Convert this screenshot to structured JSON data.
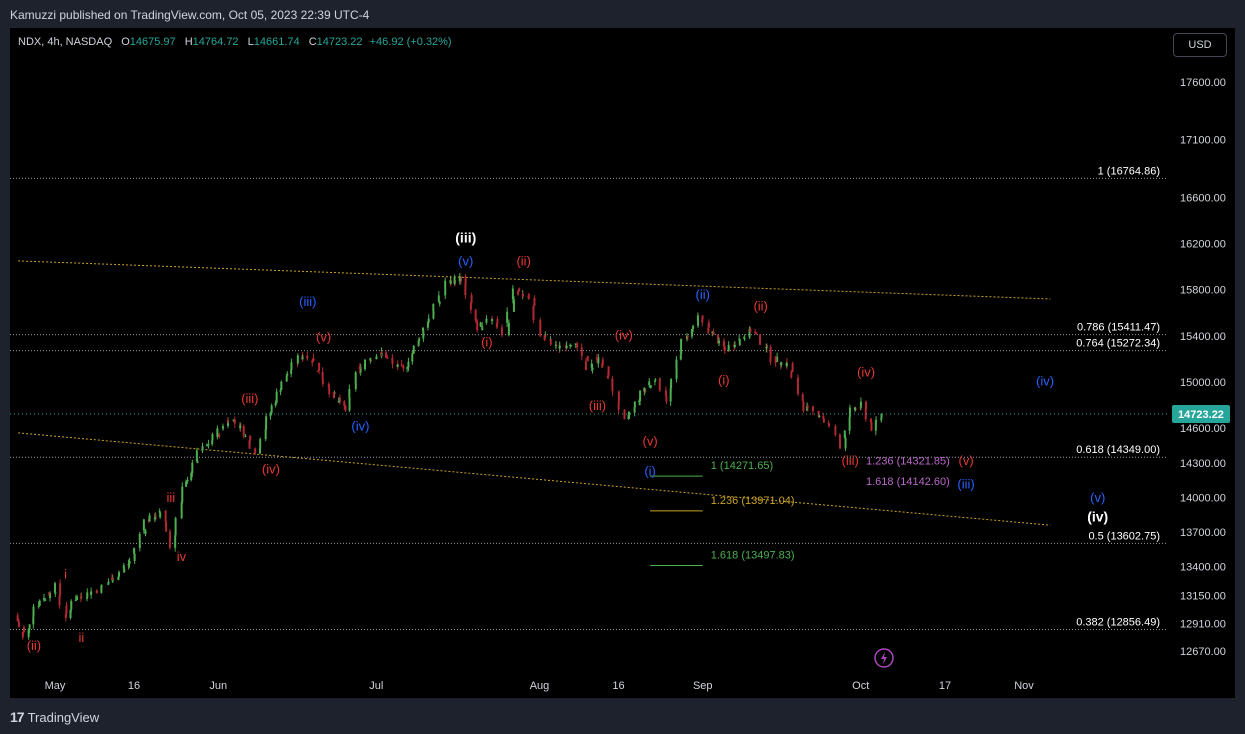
{
  "header": {
    "published": "Kamuzzi published on TradingView.com, Oct 05, 2023 22:39 UTC-4"
  },
  "ohlc": {
    "symbol": "NDX, 4h, NASDAQ",
    "open_label": "O",
    "open": "14675.97",
    "high_label": "H",
    "high": "14764.72",
    "low_label": "L",
    "low": "14661.74",
    "close_label": "C",
    "close": "14723.22",
    "change": "+46.92 (+0.32%)"
  },
  "currency_button": "USD",
  "footer": {
    "logo_mark": "17",
    "logo_text": "TradingView"
  },
  "colors": {
    "up": "#26a69a",
    "down": "#ef5350",
    "candle_up": "#4caf50",
    "candle_down": "#b22833",
    "red_label": "#e53935",
    "blue_label": "#2962ff",
    "white_label": "#ffffff",
    "trendline": "#c9a227",
    "fib_line": "#9598a1",
    "price_tag": "#26a69a"
  },
  "chart_data": {
    "type": "candlestick",
    "yscale": "linear",
    "ylim": [
      12500,
      17900
    ],
    "xlim": [
      "2023-04-24",
      "2023-11-06"
    ],
    "price_ticks": [
      "17600.00",
      "17100.00",
      "16600.00",
      "16200.00",
      "15800.00",
      "15400.00",
      "15000.00",
      "14600.00",
      "14300.00",
      "14000.00",
      "13700.00",
      "13400.00",
      "13150.00",
      "12910.00",
      "12670.00"
    ],
    "date_ticks": [
      {
        "label": "May",
        "date": "2023-05-01"
      },
      {
        "label": "16",
        "date": "2023-05-16"
      },
      {
        "label": "Jun",
        "date": "2023-06-01"
      },
      {
        "label": "Jul",
        "date": "2023-07-01"
      },
      {
        "label": "Aug",
        "date": "2023-08-01"
      },
      {
        "label": "16",
        "date": "2023-08-16"
      },
      {
        "label": "Sep",
        "date": "2023-09-01"
      },
      {
        "label": "Oct",
        "date": "2023-10-01"
      },
      {
        "label": "17",
        "date": "2023-10-17"
      },
      {
        "label": "Nov",
        "date": "2023-11-01"
      }
    ],
    "last_price": "14723.22",
    "price_path": [
      [
        "2023-04-24",
        12980
      ],
      [
        "2023-04-26",
        12780
      ],
      [
        "2023-04-28",
        13060
      ],
      [
        "2023-05-02",
        13230
      ],
      [
        "2023-05-04",
        12930
      ],
      [
        "2023-05-05",
        13120
      ],
      [
        "2023-05-10",
        13200
      ],
      [
        "2023-05-13",
        13310
      ],
      [
        "2023-05-16",
        13450
      ],
      [
        "2023-05-19",
        13800
      ],
      [
        "2023-05-22",
        13860
      ],
      [
        "2023-05-24",
        13570
      ],
      [
        "2023-05-26",
        14070
      ],
      [
        "2023-05-29",
        14380
      ],
      [
        "2023-05-31",
        14470
      ],
      [
        "2023-06-04",
        14690
      ],
      [
        "2023-06-06",
        14600
      ],
      [
        "2023-06-09",
        14380
      ],
      [
        "2023-06-11",
        14680
      ],
      [
        "2023-06-14",
        15010
      ],
      [
        "2023-06-17",
        15210
      ],
      [
        "2023-06-19",
        15240
      ],
      [
        "2023-06-22",
        15000
      ],
      [
        "2023-06-24",
        14850
      ],
      [
        "2023-06-26",
        14760
      ],
      [
        "2023-06-28",
        15080
      ],
      [
        "2023-06-30",
        15200
      ],
      [
        "2023-07-03",
        15250
      ],
      [
        "2023-07-05",
        15150
      ],
      [
        "2023-07-07",
        15100
      ],
      [
        "2023-07-10",
        15400
      ],
      [
        "2023-07-13",
        15650
      ],
      [
        "2023-07-15",
        15860
      ],
      [
        "2023-07-18",
        15900
      ],
      [
        "2023-07-21",
        15450
      ],
      [
        "2023-07-24",
        15560
      ],
      [
        "2023-07-26",
        15420
      ],
      [
        "2023-07-28",
        15800
      ],
      [
        "2023-07-31",
        15720
      ],
      [
        "2023-08-02",
        15400
      ],
      [
        "2023-08-05",
        15300
      ],
      [
        "2023-08-08",
        15350
      ],
      [
        "2023-08-11",
        15120
      ],
      [
        "2023-08-13",
        15220
      ],
      [
        "2023-08-16",
        14900
      ],
      [
        "2023-08-18",
        14650
      ],
      [
        "2023-08-21",
        14900
      ],
      [
        "2023-08-24",
        15050
      ],
      [
        "2023-08-26",
        14850
      ],
      [
        "2023-08-29",
        15350
      ],
      [
        "2023-09-01",
        15550
      ],
      [
        "2023-09-03",
        15450
      ],
      [
        "2023-09-06",
        15270
      ],
      [
        "2023-09-08",
        15350
      ],
      [
        "2023-09-11",
        15450
      ],
      [
        "2023-09-13",
        15350
      ],
      [
        "2023-09-15",
        15200
      ],
      [
        "2023-09-18",
        15150
      ],
      [
        "2023-09-21",
        14780
      ],
      [
        "2023-09-24",
        14720
      ],
      [
        "2023-09-26",
        14600
      ],
      [
        "2023-09-28",
        14450
      ],
      [
        "2023-09-30",
        14750
      ],
      [
        "2023-10-02",
        14800
      ],
      [
        "2023-10-04",
        14600
      ],
      [
        "2023-10-06",
        14723
      ]
    ],
    "trendlines": [
      {
        "from": [
          "2023-04-24",
          16050
        ],
        "to": [
          "2023-11-06",
          15720
        ]
      },
      {
        "from": [
          "2023-04-24",
          14560
        ],
        "to": [
          "2023-11-06",
          13760
        ]
      }
    ],
    "fib_levels": [
      {
        "label": "1 (16764.86)",
        "price": 16764.86
      },
      {
        "label": "0.786 (15411.47)",
        "price": 15411.47
      },
      {
        "label": "0.764 (15272.34)",
        "price": 15272.34
      },
      {
        "label": "0.618 (14349.00)",
        "price": 14349.0
      },
      {
        "label": "0.5 (13602.75)",
        "price": 13602.75
      },
      {
        "label": "0.382 (12856.49)",
        "price": 12856.49
      }
    ],
    "extension_levels": [
      {
        "label": "1 (14271.65)",
        "price": 14271.65,
        "color": "#4caf50"
      },
      {
        "label": "1.236 (13971.04)",
        "price": 13971.04,
        "color": "#c9a227"
      },
      {
        "label": "1.618 (13497.83)",
        "price": 13497.83,
        "color": "#4caf50"
      }
    ],
    "small_ext_labels": [
      {
        "label": "1.236 (14321.85)",
        "price": 14321.85
      },
      {
        "label": "1.618 (14142.60)",
        "price": 14142.6
      }
    ],
    "wave_labels": [
      {
        "text": "(ii)",
        "date": "2023-04-27",
        "price": 12680,
        "color": "red"
      },
      {
        "text": "i",
        "date": "2023-05-03",
        "price": 13300,
        "color": "red"
      },
      {
        "text": "ii",
        "date": "2023-05-06",
        "price": 12750,
        "color": "red"
      },
      {
        "text": "iii",
        "date": "2023-05-23",
        "price": 13960,
        "color": "red"
      },
      {
        "text": "iv",
        "date": "2023-05-25",
        "price": 13450,
        "color": "red"
      },
      {
        "text": "(iii)",
        "date": "2023-06-07",
        "price": 14820,
        "color": "red"
      },
      {
        "text": "(iv)",
        "date": "2023-06-11",
        "price": 14210,
        "color": "red"
      },
      {
        "text": "(v)",
        "date": "2023-06-21",
        "price": 15350,
        "color": "red"
      },
      {
        "text": "(iii)",
        "date": "2023-06-18",
        "price": 15660,
        "color": "blue"
      },
      {
        "text": "(iv)",
        "date": "2023-06-28",
        "price": 14580,
        "color": "blue"
      },
      {
        "text": "(iii)",
        "date": "2023-07-18",
        "price": 16210,
        "color": "white"
      },
      {
        "text": "(v)",
        "date": "2023-07-18",
        "price": 16010,
        "color": "blue"
      },
      {
        "text": "(i)",
        "date": "2023-07-22",
        "price": 15310,
        "color": "red"
      },
      {
        "text": "(ii)",
        "date": "2023-07-29",
        "price": 16010,
        "color": "red"
      },
      {
        "text": "(iii)",
        "date": "2023-08-12",
        "price": 14760,
        "color": "red"
      },
      {
        "text": "(iv)",
        "date": "2023-08-17",
        "price": 15370,
        "color": "red"
      },
      {
        "text": "(v)",
        "date": "2023-08-22",
        "price": 14450,
        "color": "red"
      },
      {
        "text": "(i)",
        "date": "2023-08-22",
        "price": 14190,
        "color": "blue"
      },
      {
        "text": "(ii)",
        "date": "2023-09-01",
        "price": 15720,
        "color": "blue"
      },
      {
        "text": "(i)",
        "date": "2023-09-05",
        "price": 14980,
        "color": "red"
      },
      {
        "text": "(ii)",
        "date": "2023-09-12",
        "price": 15620,
        "color": "red"
      },
      {
        "text": "(iii)",
        "date": "2023-09-29",
        "price": 14280,
        "color": "red"
      },
      {
        "text": "(iv)",
        "date": "2023-10-02",
        "price": 15050,
        "color": "red"
      },
      {
        "text": "(v)",
        "date": "2023-10-21",
        "price": 14280,
        "color": "red"
      },
      {
        "text": "(iii)",
        "date": "2023-10-21",
        "price": 14080,
        "color": "blue"
      },
      {
        "text": "(iv)",
        "date": "2023-11-05",
        "price": 14970,
        "color": "blue"
      },
      {
        "text": "(v)",
        "date": "2023-11-15",
        "price": 13960,
        "color": "blue"
      },
      {
        "text": "(iv)",
        "date": "2023-11-15",
        "price": 13790,
        "color": "white"
      }
    ]
  }
}
